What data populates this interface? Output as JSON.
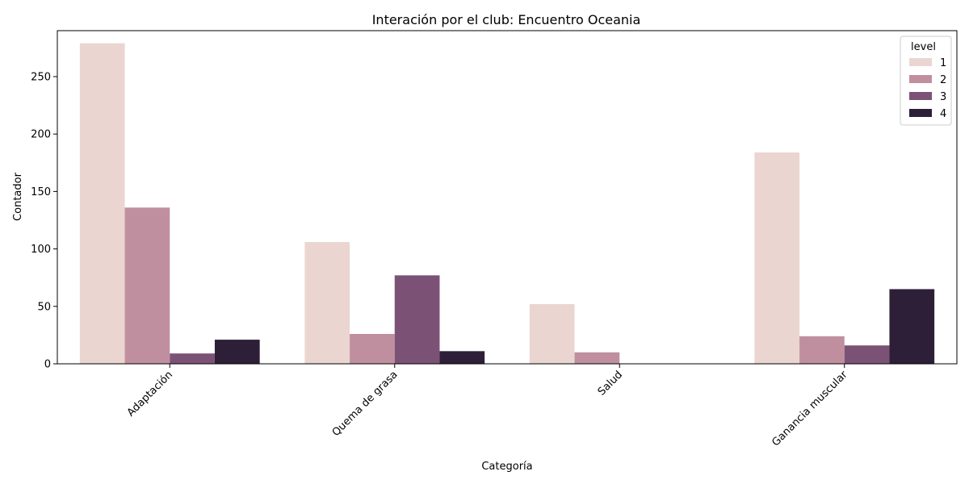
{
  "chart_data": {
    "type": "bar",
    "title": "Interación por el club: Encuentro Oceania",
    "xlabel": "Categoría",
    "ylabel": "Contador",
    "categories": [
      "Adaptación",
      "Quema de grasa",
      "Salud",
      "Ganancia muscular"
    ],
    "ylim": [
      0,
      290
    ],
    "yticks": [
      0,
      50,
      100,
      150,
      200,
      250
    ],
    "grid": false,
    "legend": {
      "title": "level",
      "placement": "top-right"
    },
    "series": [
      {
        "name": "1",
        "color": "#ead5d1",
        "values": [
          279,
          106,
          52,
          184
        ]
      },
      {
        "name": "2",
        "color": "#c08f9f",
        "values": [
          136,
          26,
          10,
          24
        ]
      },
      {
        "name": "3",
        "color": "#7b5276",
        "values": [
          9,
          77,
          0,
          16
        ]
      },
      {
        "name": "4",
        "color": "#2e1f39",
        "values": [
          21,
          11,
          0,
          65
        ]
      }
    ]
  }
}
